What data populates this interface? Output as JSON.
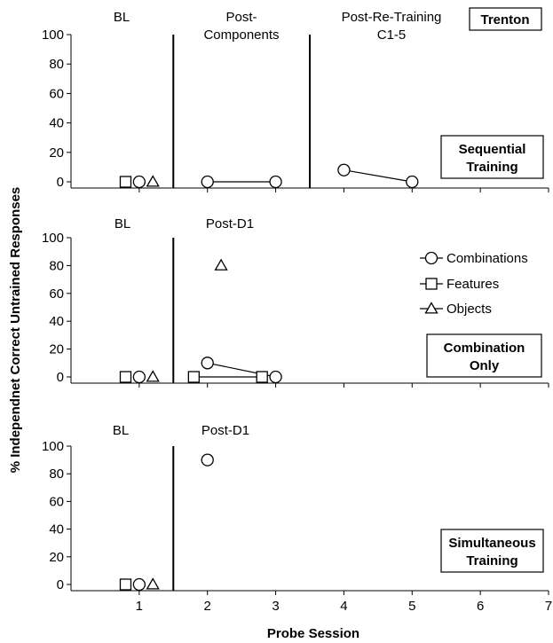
{
  "figure": {
    "ylabel": "% Independnet Correct Untrained Responses",
    "xlabel": "Probe Session",
    "subject": "Trenton",
    "x_ticks": [
      "1",
      "2",
      "3",
      "4",
      "5",
      "6",
      "7"
    ],
    "y_ticks": [
      "0",
      "20",
      "40",
      "60",
      "80",
      "100"
    ]
  },
  "legend": {
    "placement": "right, middle panel",
    "entries": [
      {
        "name": "Combinations",
        "marker": "circle"
      },
      {
        "name": "Features",
        "marker": "square"
      },
      {
        "name": "Objects",
        "marker": "triangle"
      }
    ]
  },
  "chart_data": [
    {
      "type": "scatter",
      "panel_label": "Sequential Training",
      "xlim": [
        0,
        7
      ],
      "ylim": [
        0,
        100
      ],
      "phases": [
        {
          "label": "BL",
          "line_after": 1.5
        },
        {
          "label": "Post-Components",
          "line_after": 3.5
        },
        {
          "label": "Post-Re-Training C1-5",
          "line_after": null
        }
      ],
      "series": [
        {
          "name": "Combinations",
          "points": [
            [
              1,
              0
            ],
            [
              2,
              0
            ],
            [
              3,
              0
            ],
            [
              4,
              8
            ],
            [
              5,
              0
            ]
          ],
          "connect": [
            [
              2,
              3
            ],
            [
              4,
              5
            ]
          ]
        },
        {
          "name": "Features",
          "points": [
            [
              0.8,
              0
            ]
          ],
          "connect": []
        },
        {
          "name": "Objects",
          "points": [
            [
              1.2,
              0
            ]
          ],
          "connect": []
        }
      ]
    },
    {
      "type": "scatter",
      "panel_label": "Combination Only",
      "xlim": [
        0,
        7
      ],
      "ylim": [
        0,
        100
      ],
      "phases": [
        {
          "label": "BL",
          "line_after": 1.5
        },
        {
          "label": "Post-D1",
          "line_after": null
        }
      ],
      "series": [
        {
          "name": "Combinations",
          "points": [
            [
              1,
              0
            ],
            [
              2,
              10
            ],
            [
              3,
              0
            ]
          ],
          "connect": [
            [
              2,
              3
            ]
          ]
        },
        {
          "name": "Features",
          "points": [
            [
              0.8,
              0
            ],
            [
              1.8,
              0
            ],
            [
              2.8,
              0
            ]
          ],
          "connect": [
            [
              1.8,
              2.8
            ]
          ]
        },
        {
          "name": "Objects",
          "points": [
            [
              1.2,
              0
            ],
            [
              2.2,
              80
            ]
          ],
          "connect": []
        }
      ]
    },
    {
      "type": "scatter",
      "panel_label": "Simultaneous Training",
      "xlim": [
        0,
        7
      ],
      "ylim": [
        0,
        100
      ],
      "phases": [
        {
          "label": "BL",
          "line_after": 1.5
        },
        {
          "label": "Post-D1",
          "line_after": null
        }
      ],
      "series": [
        {
          "name": "Combinations",
          "points": [
            [
              1,
              0
            ],
            [
              2,
              90
            ]
          ],
          "connect": []
        },
        {
          "name": "Features",
          "points": [
            [
              0.8,
              0
            ]
          ],
          "connect": []
        },
        {
          "name": "Objects",
          "points": [
            [
              1.2,
              0
            ]
          ],
          "connect": []
        }
      ]
    }
  ]
}
